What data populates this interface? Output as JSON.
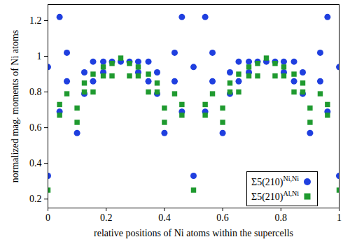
{
  "chart_data": {
    "type": "scatter",
    "x_label": "relative positions of Ni atoms within the supercells",
    "y_label": "normalized mag. moments of Ni atoms",
    "xlim": [
      0,
      1
    ],
    "xticks": [
      0,
      0.2,
      0.4,
      0.6,
      0.8,
      1
    ],
    "ylim": [
      0.15,
      1.29
    ],
    "yticks": [
      0.2,
      0.4,
      0.6,
      0.8,
      1,
      1.2
    ],
    "legend": "bottom-right",
    "series": [
      {
        "name": "Σ5(210)Ni,Ni",
        "color": "#1f3fdf",
        "marker": "circle",
        "x": [
          0,
          0,
          0.04,
          0.04,
          0.065,
          0.065,
          0.1,
          0.125,
          0.125,
          0.155,
          0.155,
          0.19,
          0.19,
          0.22,
          0.25,
          0.28,
          0.31,
          0.31,
          0.345,
          0.345,
          0.375,
          0.375,
          0.4,
          0.435,
          0.435,
          0.46,
          0.46,
          0.5,
          0.5,
          0.54,
          0.54,
          0.565,
          0.565,
          0.6,
          0.625,
          0.625,
          0.655,
          0.655,
          0.69,
          0.69,
          0.72,
          0.75,
          0.78,
          0.81,
          0.81,
          0.845,
          0.845,
          0.875,
          0.875,
          0.9,
          0.935,
          0.935,
          0.96,
          0.96,
          1,
          1
        ],
        "values": [
          0.94,
          0.33,
          1.22,
          0.69,
          1.02,
          0.86,
          0.57,
          0.91,
          0.79,
          0.97,
          0.86,
          0.97,
          0.91,
          0.97,
          0.97,
          0.97,
          0.97,
          0.91,
          0.97,
          0.86,
          0.91,
          0.79,
          0.57,
          1.02,
          0.86,
          1.22,
          0.69,
          0.94,
          0.33,
          1.22,
          0.69,
          1.02,
          0.86,
          0.57,
          0.91,
          0.79,
          0.97,
          0.86,
          0.97,
          0.91,
          0.97,
          0.97,
          0.97,
          0.97,
          0.91,
          0.97,
          0.86,
          0.91,
          0.79,
          0.57,
          1.02,
          0.86,
          1.22,
          0.69,
          0.94,
          0.33
        ]
      },
      {
        "name": "Σ5(210)Al,Ni",
        "color": "#1f9a2f",
        "marker": "square",
        "x": [
          0,
          0.04,
          0.04,
          0.065,
          0.1,
          0.1,
          0.125,
          0.125,
          0.155,
          0.155,
          0.19,
          0.19,
          0.22,
          0.22,
          0.25,
          0.28,
          0.28,
          0.31,
          0.31,
          0.345,
          0.345,
          0.375,
          0.375,
          0.4,
          0.4,
          0.435,
          0.46,
          0.46,
          0.5,
          0.54,
          0.54,
          0.565,
          0.6,
          0.6,
          0.625,
          0.625,
          0.655,
          0.655,
          0.69,
          0.69,
          0.72,
          0.72,
          0.75,
          0.78,
          0.78,
          0.81,
          0.81,
          0.845,
          0.845,
          0.875,
          0.875,
          0.9,
          0.9,
          0.935,
          0.96,
          0.96,
          1
        ],
        "values": [
          0.25,
          0.67,
          0.73,
          0.79,
          0.63,
          0.71,
          0.8,
          0.85,
          0.8,
          0.9,
          0.89,
          0.94,
          0.89,
          0.96,
          0.99,
          0.89,
          0.96,
          0.89,
          0.94,
          0.8,
          0.9,
          0.8,
          0.85,
          0.63,
          0.71,
          0.79,
          0.67,
          0.73,
          0.25,
          0.67,
          0.73,
          0.79,
          0.63,
          0.71,
          0.8,
          0.85,
          0.8,
          0.9,
          0.89,
          0.94,
          0.89,
          0.96,
          0.99,
          0.89,
          0.96,
          0.89,
          0.94,
          0.8,
          0.9,
          0.8,
          0.85,
          0.63,
          0.71,
          0.79,
          0.67,
          0.73,
          0.25
        ]
      }
    ]
  }
}
